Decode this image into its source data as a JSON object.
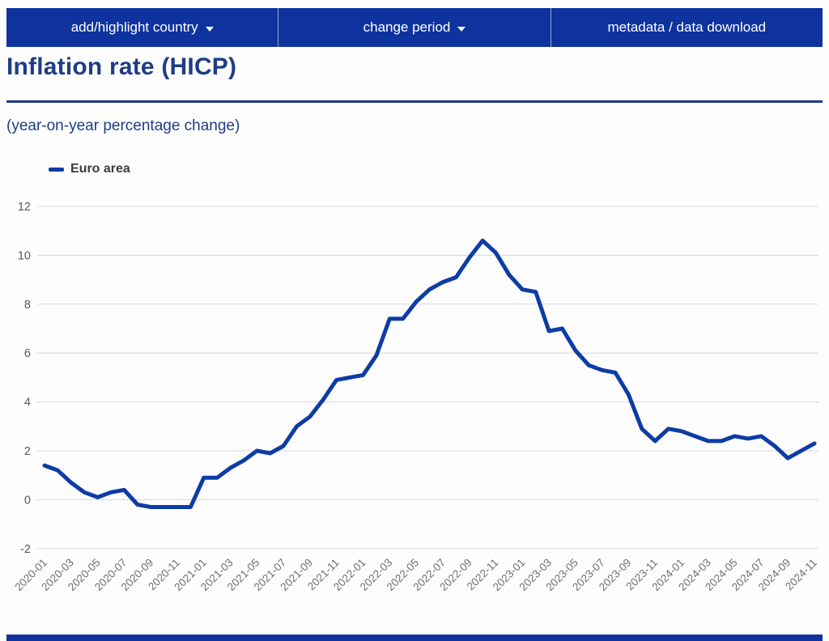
{
  "nav": {
    "items": [
      {
        "label": "add/highlight country",
        "has_caret": true
      },
      {
        "label": "change period",
        "has_caret": true
      },
      {
        "label": "metadata / data download",
        "has_caret": false
      }
    ]
  },
  "header": {
    "title": "Inflation rate (HICP)",
    "subtitle": "(year-on-year percentage change)"
  },
  "legend": {
    "series_label": "Euro area"
  },
  "colors": {
    "nav_blue": "#0e339e",
    "heading_blue": "#1f3d85",
    "line_blue": "#0e3ca5",
    "grid_gray": "#d8d8d8",
    "y_label_gray": "#595959",
    "x_label_gray": "#6e6e6e"
  },
  "chart_data": {
    "type": "line",
    "title": "Inflation rate (HICP)",
    "subtitle": "(year-on-year percentage change)",
    "x": [
      "2020-01",
      "2020-02",
      "2020-03",
      "2020-04",
      "2020-05",
      "2020-06",
      "2020-07",
      "2020-08",
      "2020-09",
      "2020-10",
      "2020-11",
      "2020-12",
      "2021-01",
      "2021-02",
      "2021-03",
      "2021-04",
      "2021-05",
      "2021-06",
      "2021-07",
      "2021-08",
      "2021-09",
      "2021-10",
      "2021-11",
      "2021-12",
      "2022-01",
      "2022-02",
      "2022-03",
      "2022-04",
      "2022-05",
      "2022-06",
      "2022-07",
      "2022-08",
      "2022-09",
      "2022-10",
      "2022-11",
      "2022-12",
      "2023-01",
      "2023-02",
      "2023-03",
      "2023-04",
      "2023-05",
      "2023-06",
      "2023-07",
      "2023-08",
      "2023-09",
      "2023-10",
      "2023-11",
      "2023-12",
      "2024-01",
      "2024-02",
      "2024-03",
      "2024-04",
      "2024-05",
      "2024-06",
      "2024-07",
      "2024-08",
      "2024-09",
      "2024-10",
      "2024-11"
    ],
    "series": [
      {
        "name": "Euro area",
        "color": "#0e3ca5",
        "values": [
          1.4,
          1.2,
          0.7,
          0.3,
          0.1,
          0.3,
          0.4,
          -0.2,
          -0.3,
          -0.3,
          -0.3,
          -0.3,
          0.9,
          0.9,
          1.3,
          1.6,
          2.0,
          1.9,
          2.2,
          3.0,
          3.4,
          4.1,
          4.9,
          5.0,
          5.1,
          5.9,
          7.4,
          7.4,
          8.1,
          8.6,
          8.9,
          9.1,
          9.9,
          10.6,
          10.1,
          9.2,
          8.6,
          8.5,
          6.9,
          7.0,
          6.1,
          5.5,
          5.3,
          5.2,
          4.3,
          2.9,
          2.4,
          2.9,
          2.8,
          2.6,
          2.4,
          2.4,
          2.6,
          2.5,
          2.6,
          2.2,
          1.7,
          2.0,
          2.3
        ]
      }
    ],
    "xlabel": "",
    "ylabel": "",
    "ylim": [
      -2,
      12
    ],
    "y_ticks": [
      -2,
      0,
      2,
      4,
      6,
      8,
      10,
      12
    ],
    "x_tick_every": 2,
    "grid": "horizontal",
    "x_label_rotation": -45,
    "legend_position": "top-left"
  }
}
